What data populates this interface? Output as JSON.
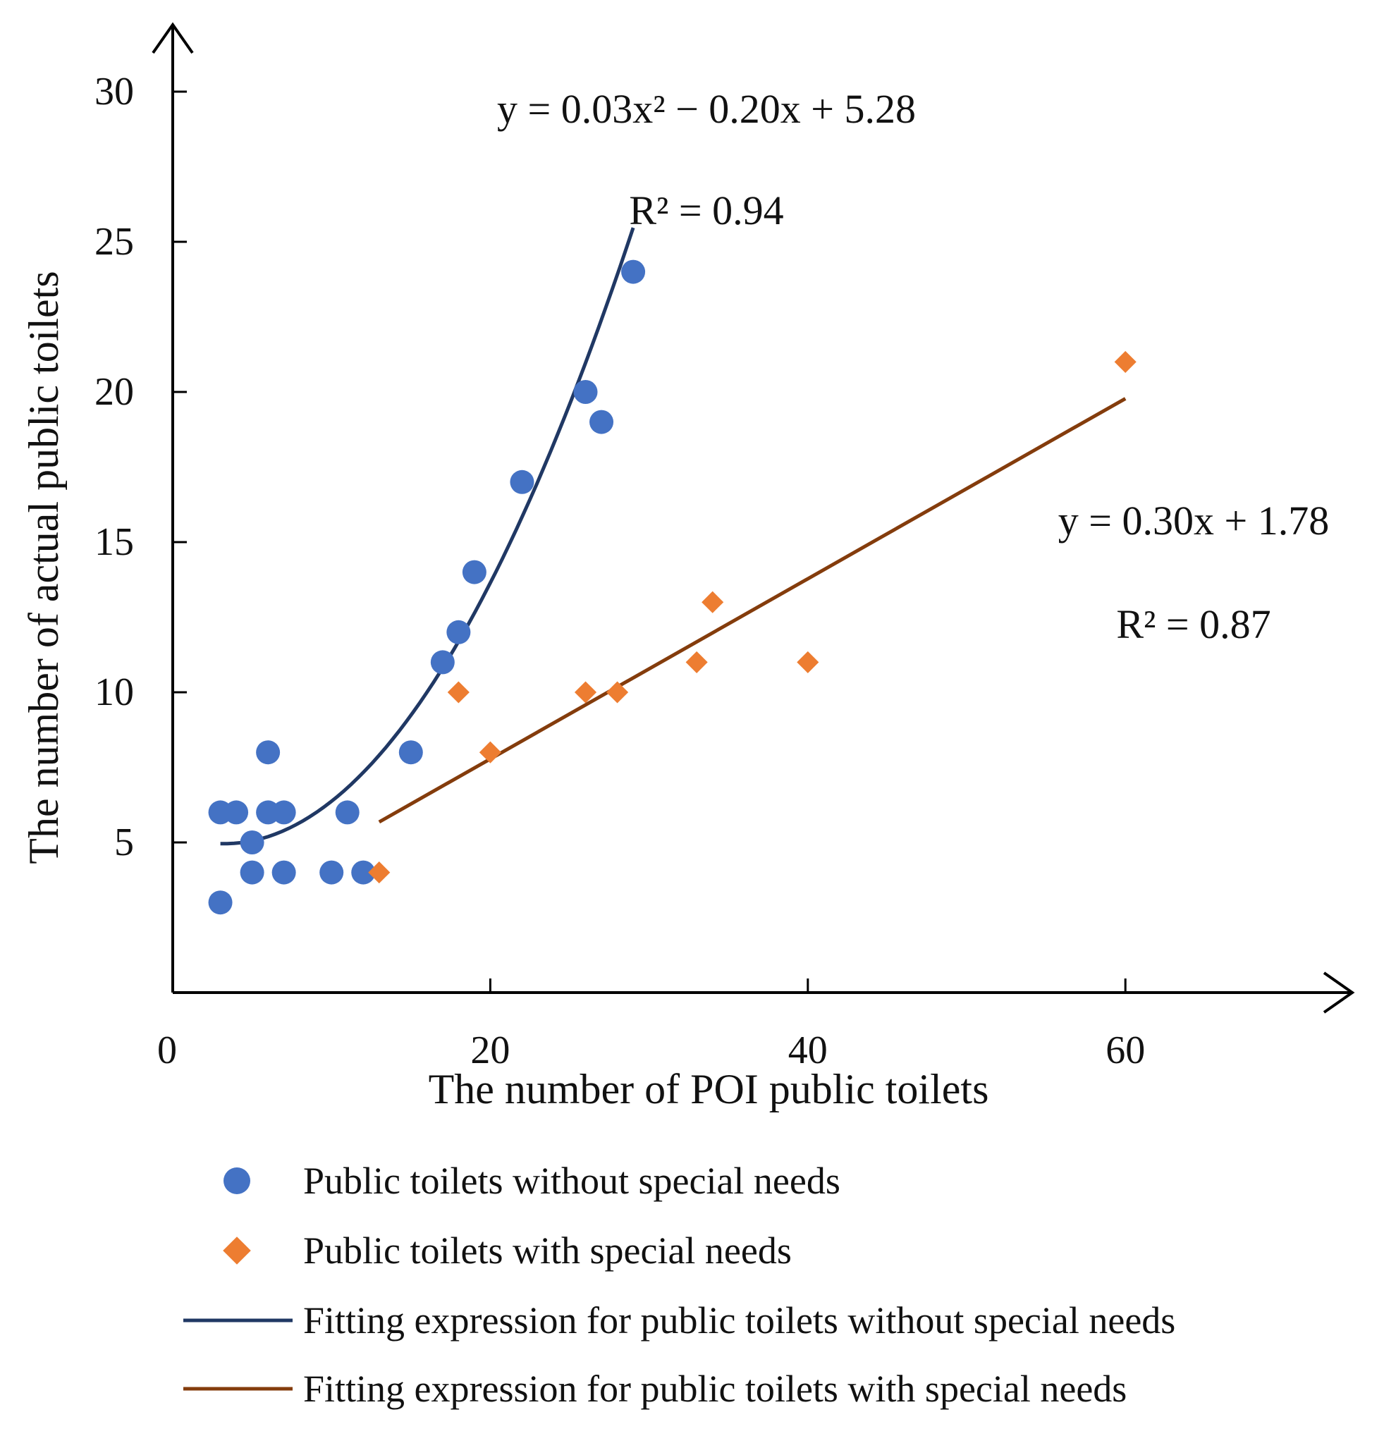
{
  "chart_data": {
    "type": "scatter",
    "xlabel": "The number of POI public toilets",
    "ylabel": "The number of actual public toilets",
    "xlim": [
      0,
      74
    ],
    "ylim": [
      0,
      31
    ],
    "x_ticks": [
      0,
      20,
      40,
      60
    ],
    "y_ticks": [
      5,
      10,
      15,
      20,
      25,
      30
    ],
    "grid": false,
    "colors": {
      "series_without": "#4472C4",
      "series_with": "#ED7D31",
      "fit_without": "#203864",
      "fit_with": "#843C0C",
      "axis": "#000000"
    },
    "series": [
      {
        "name": "Public toilets without special needs",
        "marker": "circle",
        "points": [
          [
            3,
            3
          ],
          [
            3,
            6
          ],
          [
            4,
            6
          ],
          [
            5,
            4
          ],
          [
            5,
            5
          ],
          [
            6,
            6
          ],
          [
            6,
            8
          ],
          [
            7,
            4
          ],
          [
            7,
            6
          ],
          [
            10,
            4
          ],
          [
            11,
            6
          ],
          [
            12,
            4
          ],
          [
            15,
            8
          ],
          [
            17,
            11
          ],
          [
            18,
            12
          ],
          [
            19,
            14
          ],
          [
            22,
            17
          ],
          [
            26,
            20
          ],
          [
            27,
            19
          ],
          [
            29,
            24
          ]
        ]
      },
      {
        "name": "Public toilets with special needs",
        "marker": "diamond",
        "points": [
          [
            13,
            4
          ],
          [
            18,
            10
          ],
          [
            20,
            8
          ],
          [
            26,
            10
          ],
          [
            28,
            10
          ],
          [
            33,
            11
          ],
          [
            34,
            13
          ],
          [
            40,
            11
          ],
          [
            60,
            21
          ]
        ]
      }
    ],
    "fits": [
      {
        "name": "Fitting expression for public toilets without special needs",
        "kind": "polynomial",
        "coefficients": [
          0.0309,
          -0.2,
          5.28
        ],
        "x_range": [
          3,
          29
        ],
        "equation": "y = 0.03x² − 0.20x + 5.28",
        "r2": "R² = 0.94"
      },
      {
        "name": "Fitting expression for public toilets with special needs",
        "kind": "linear",
        "coefficients": [
          0.3,
          1.78
        ],
        "x_range": [
          13,
          60
        ],
        "equation": "y = 0.30x + 1.78",
        "r2": "R² = 0.87"
      }
    ],
    "legend": {
      "position": "bottom",
      "entries": [
        "Public toilets without special needs",
        "Public toilets with special needs",
        "Fitting expression for public toilets without special needs",
        "Fitting expression for public toilets with special needs"
      ]
    }
  }
}
